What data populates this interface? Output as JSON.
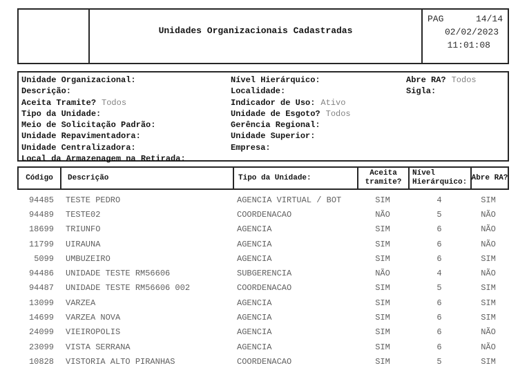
{
  "header": {
    "title": "Unidades Organizacionais Cadastradas",
    "pag_label": "PAG",
    "page": "14/14",
    "date": "02/02/2023",
    "time": "11:01:08"
  },
  "filters": {
    "col1": [
      {
        "label": "Unidade Organizacional:",
        "value": ""
      },
      {
        "label": "Descrição:",
        "value": ""
      },
      {
        "label": "Aceita Tramite?",
        "value": "Todos"
      },
      {
        "label": "Tipo da Unidade:",
        "value": ""
      },
      {
        "label": "Meio de Solicitação Padrão:",
        "value": ""
      },
      {
        "label": "Unidade Repavimentadora:",
        "value": ""
      },
      {
        "label": "Unidade Centralizadora:",
        "value": ""
      },
      {
        "label": "Local da Armazenagem na Retirada:",
        "value": ""
      }
    ],
    "col2": [
      {
        "label": "Nível Hierárquico:",
        "value": ""
      },
      {
        "label": "Localidade:",
        "value": ""
      },
      {
        "label": "Indicador de Uso:",
        "value": "Ativo"
      },
      {
        "label": "Unidade de Esgoto?",
        "value": "Todos"
      },
      {
        "label": "Gerência Regional:",
        "value": ""
      },
      {
        "label": "Unidade Superior:",
        "value": ""
      },
      {
        "label": "Empresa:",
        "value": ""
      }
    ],
    "col3": [
      {
        "label": "Abre RA?",
        "value": "Todos"
      },
      {
        "label": "Sigla:",
        "value": ""
      }
    ]
  },
  "table": {
    "headers": [
      "Código",
      "Descrição",
      "Tipo da Unidade:",
      "Aceita tramite?",
      "Nível Hierárquico:",
      "Abre RA?"
    ],
    "rows": [
      [
        "94485",
        "TESTE PEDRO",
        "AGENCIA VIRTUAL / BOT",
        "SIM",
        "4",
        "SIM"
      ],
      [
        "94489",
        "TESTE02",
        "COORDENACAO",
        "NÃO",
        "5",
        "NÃO"
      ],
      [
        "18699",
        "TRIUNFO",
        "AGENCIA",
        "SIM",
        "6",
        "NÃO"
      ],
      [
        "11799",
        "UIRAUNA",
        "AGENCIA",
        "SIM",
        "6",
        "NÃO"
      ],
      [
        "5099",
        "UMBUZEIRO",
        "AGENCIA",
        "SIM",
        "6",
        "SIM"
      ],
      [
        "94486",
        "UNIDADE TESTE RM56606",
        "SUBGERENCIA",
        "NÃO",
        "4",
        "NÃO"
      ],
      [
        "94487",
        "UNIDADE TESTE RM56606 002",
        "COORDENACAO",
        "SIM",
        "5",
        "SIM"
      ],
      [
        "13099",
        "VARZEA",
        "AGENCIA",
        "SIM",
        "6",
        "SIM"
      ],
      [
        "14699",
        "VARZEA NOVA",
        "AGENCIA",
        "SIM",
        "6",
        "SIM"
      ],
      [
        "24099",
        "VIEIROPOLIS",
        "AGENCIA",
        "SIM",
        "6",
        "NÃO"
      ],
      [
        "23099",
        "VISTA SERRANA",
        "AGENCIA",
        "SIM",
        "6",
        "NÃO"
      ],
      [
        "10828",
        "VISTORIA ALTO PIRANHAS",
        "COORDENACAO",
        "SIM",
        "5",
        "SIM"
      ]
    ]
  },
  "colors": {
    "border": "#262626",
    "label_text": "#141414",
    "muted_value": "#828282",
    "row_text": "#606060",
    "background": "#ffffff"
  }
}
